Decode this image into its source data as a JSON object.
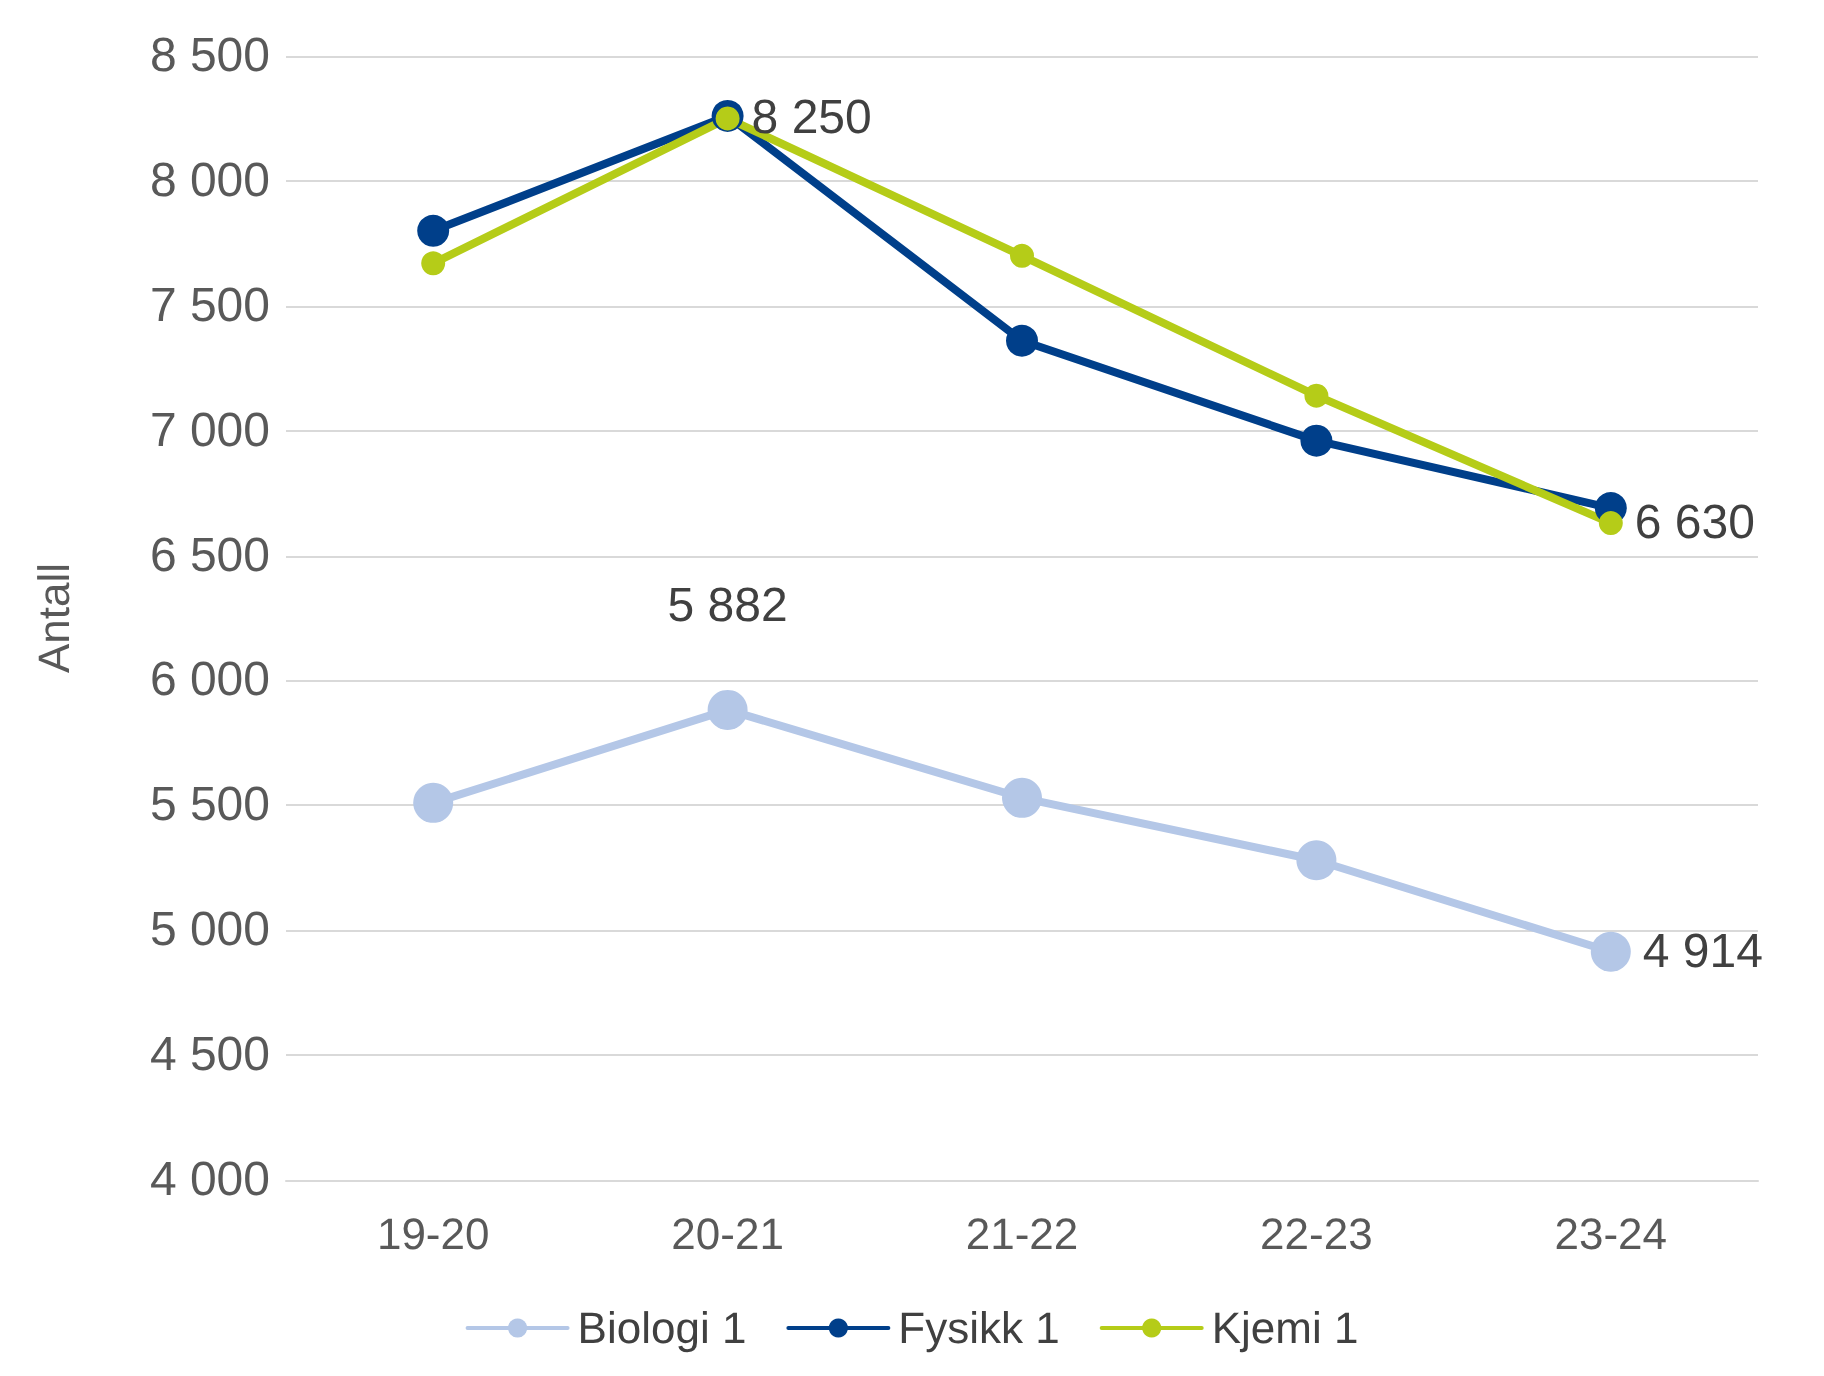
{
  "chart_data": {
    "type": "line",
    "ylabel": "Antall",
    "categories": [
      "19-20",
      "20-21",
      "21-22",
      "22-23",
      "23-24"
    ],
    "series": [
      {
        "name": "Biologi 1",
        "color": "#b4c7e7",
        "values": [
          5510,
          5882,
          5530,
          5280,
          4914
        ],
        "value_labels": [
          null,
          "5 882",
          null,
          null,
          "4 914"
        ]
      },
      {
        "name": "Fysikk 1",
        "color": "#003f8a",
        "values": [
          7800,
          8260,
          7360,
          6960,
          6690
        ],
        "value_labels": [
          null,
          null,
          null,
          null,
          null
        ]
      },
      {
        "name": "Kjemi 1",
        "color": "#b5cc18",
        "values": [
          7670,
          8250,
          7700,
          7140,
          6630
        ],
        "value_labels": [
          null,
          "8 250",
          null,
          null,
          "6 630"
        ]
      }
    ],
    "ylim": [
      4000,
      8500
    ],
    "yticks": [
      {
        "value": 4000,
        "label": "4 000"
      },
      {
        "value": 4500,
        "label": "4 500"
      },
      {
        "value": 5000,
        "label": "5 000"
      },
      {
        "value": 5500,
        "label": "5 500"
      },
      {
        "value": 6000,
        "label": "6 000"
      },
      {
        "value": 6500,
        "label": "6 500"
      },
      {
        "value": 7000,
        "label": "7 000"
      },
      {
        "value": 7500,
        "label": "7 500"
      },
      {
        "value": 8000,
        "label": "8 000"
      },
      {
        "value": 8500,
        "label": "8 500"
      }
    ],
    "grid": "y",
    "legend": "bottom",
    "marker": "circle",
    "line_style": "solid"
  }
}
